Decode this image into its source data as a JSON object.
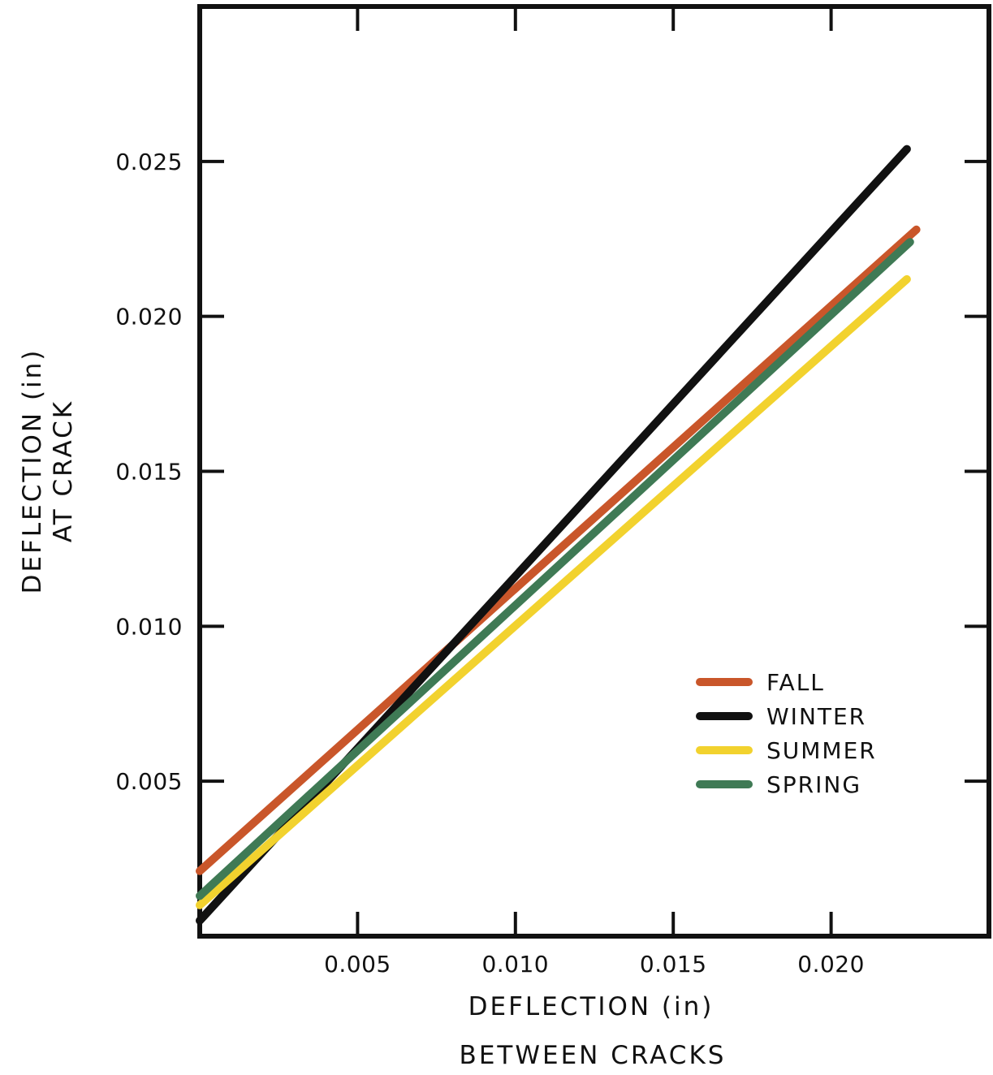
{
  "chart_data": {
    "type": "line",
    "title": "",
    "xlabel": [
      "DEFLECTION (in)",
      "BETWEEN CRACKS"
    ],
    "ylabel": [
      "DEFLECTION (in)",
      "AT CRACK"
    ],
    "xlim": [
      0.0,
      0.025
    ],
    "ylim": [
      0.0,
      0.03
    ],
    "x_ticks": [
      0.005,
      0.01,
      0.015,
      0.02
    ],
    "x_tick_labels": [
      "0.005",
      "0.010",
      "0.015",
      "0.020"
    ],
    "y_ticks": [
      0.005,
      0.01,
      0.015,
      0.02,
      0.025
    ],
    "y_tick_labels": [
      "0.005",
      "0.010",
      "0.015",
      "0.020",
      "0.025"
    ],
    "grid": false,
    "legend_position": "lower-right",
    "series": [
      {
        "name": "FALL",
        "color": "#c9562a",
        "x": [
          0.0,
          0.0227
        ],
        "y": [
          0.0021,
          0.0228
        ]
      },
      {
        "name": "WINTER",
        "color": "#111111",
        "x": [
          0.0,
          0.0224
        ],
        "y": [
          0.0005,
          0.0254
        ]
      },
      {
        "name": "SUMMER",
        "color": "#f2d22e",
        "x": [
          0.0,
          0.0224
        ],
        "y": [
          0.001,
          0.0212
        ]
      },
      {
        "name": "SPRING",
        "color": "#3f7a55",
        "x": [
          0.0,
          0.0225
        ],
        "y": [
          0.0013,
          0.0224
        ]
      }
    ]
  }
}
